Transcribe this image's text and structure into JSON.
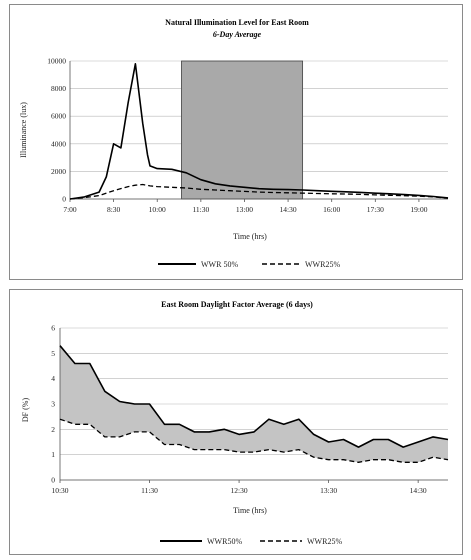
{
  "charts": [
    {
      "type": "line",
      "title": "Natural Illumination Level for East Room",
      "subtitle": "6-Day Average",
      "xlabel": "Time (hrs)",
      "ylabel": "Illuminance (lux)",
      "x_ticks": [
        "7:00",
        "8:30",
        "10:00",
        "11:30",
        "13:00",
        "14:30",
        "16:00",
        "17:30",
        "19:00"
      ],
      "y_ticks": [
        "0",
        "2000",
        "4000",
        "6000",
        "8000",
        "10000"
      ],
      "legend": [
        "WWR 50%",
        "WWR25%"
      ]
    },
    {
      "type": "area",
      "title": "East Room Daylight Factor Average (6 days)",
      "xlabel": "Time (hrs)",
      "ylabel": "DF (%)",
      "x_ticks": [
        "10:30",
        "11:30",
        "12:30",
        "13:30",
        "14:30"
      ],
      "y_ticks": [
        "0",
        "1",
        "2",
        "3",
        "4",
        "5",
        "6"
      ],
      "legend": [
        "WWR50%",
        "WWR25%"
      ]
    }
  ],
  "chart_data": [
    {
      "type": "line",
      "title": "Natural Illumination Level for East Room",
      "subtitle": "6-Day Average",
      "xlabel": "Time (hrs)",
      "ylabel": "Illuminance (lux)",
      "xlim": [
        "7:00",
        "20:00"
      ],
      "ylim": [
        0,
        10000
      ],
      "grid": true,
      "legend_position": "bottom",
      "shaded_band": [
        "10:50",
        "15:00"
      ],
      "series": [
        {
          "name": "WWR 50%",
          "style": "solid",
          "x": [
            "7:00",
            "7:30",
            "8:00",
            "8:15",
            "8:30",
            "8:45",
            "9:00",
            "9:15",
            "9:30",
            "9:40",
            "9:45",
            "10:00",
            "10:30",
            "11:00",
            "11:30",
            "12:00",
            "12:30",
            "13:00",
            "13:30",
            "14:00",
            "14:30",
            "15:00",
            "15:30",
            "16:00",
            "16:30",
            "17:00",
            "17:30",
            "18:00",
            "18:30",
            "19:00",
            "19:30",
            "20:00"
          ],
          "values": [
            0,
            150,
            500,
            1600,
            4000,
            3700,
            7000,
            9800,
            5500,
            3200,
            2400,
            2200,
            2150,
            1900,
            1400,
            1100,
            950,
            850,
            750,
            700,
            680,
            650,
            600,
            560,
            520,
            480,
            420,
            380,
            320,
            260,
            180,
            80
          ]
        },
        {
          "name": "WWR25%",
          "style": "dashed",
          "x": [
            "7:00",
            "7:30",
            "8:00",
            "8:30",
            "9:00",
            "9:15",
            "9:30",
            "9:45",
            "10:00",
            "10:30",
            "11:00",
            "11:30",
            "12:00",
            "12:30",
            "13:00",
            "13:30",
            "14:00",
            "14:30",
            "15:00",
            "15:30",
            "16:00",
            "16:30",
            "17:00",
            "17:30",
            "18:00",
            "18:30",
            "19:00",
            "19:30",
            "20:00"
          ],
          "values": [
            0,
            100,
            250,
            600,
            900,
            1000,
            1050,
            950,
            900,
            850,
            800,
            700,
            650,
            600,
            550,
            500,
            470,
            450,
            430,
            400,
            380,
            360,
            330,
            300,
            270,
            240,
            200,
            150,
            60
          ]
        }
      ]
    },
    {
      "type": "area",
      "title": "East Room Daylight Factor Average (6 days)",
      "xlabel": "Time (hrs)",
      "ylabel": "DF (%)",
      "xlim": [
        "10:30",
        "14:50"
      ],
      "ylim": [
        0,
        6
      ],
      "grid": true,
      "legend_position": "bottom",
      "fill_between_series": true,
      "x": [
        "10:30",
        "10:40",
        "10:50",
        "11:00",
        "11:10",
        "11:20",
        "11:30",
        "11:40",
        "11:50",
        "12:00",
        "12:10",
        "12:20",
        "12:30",
        "12:40",
        "12:50",
        "13:00",
        "13:10",
        "13:20",
        "13:30",
        "13:40",
        "13:50",
        "14:00",
        "14:10",
        "14:20",
        "14:30",
        "14:40",
        "14:50"
      ],
      "series": [
        {
          "name": "WWR50%",
          "style": "solid",
          "values": [
            5.3,
            4.6,
            4.6,
            3.5,
            3.1,
            3.0,
            3.0,
            2.2,
            2.2,
            1.9,
            1.9,
            2.0,
            1.8,
            1.9,
            2.4,
            2.2,
            2.4,
            1.8,
            1.5,
            1.6,
            1.3,
            1.6,
            1.6,
            1.3,
            1.5,
            1.7,
            1.6
          ]
        },
        {
          "name": "WWR25%",
          "style": "dashed",
          "values": [
            2.4,
            2.2,
            2.2,
            1.7,
            1.7,
            1.9,
            1.9,
            1.4,
            1.4,
            1.2,
            1.2,
            1.2,
            1.1,
            1.1,
            1.2,
            1.1,
            1.2,
            0.9,
            0.8,
            0.8,
            0.7,
            0.8,
            0.8,
            0.7,
            0.7,
            0.9,
            0.8
          ]
        }
      ]
    }
  ]
}
